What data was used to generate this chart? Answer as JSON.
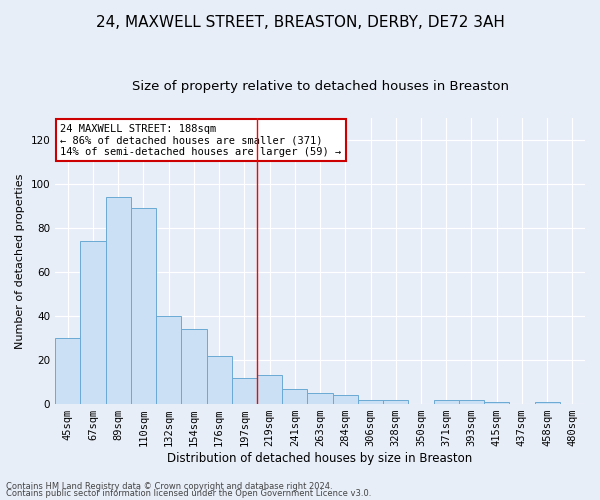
{
  "title": "24, MAXWELL STREET, BREASTON, DERBY, DE72 3AH",
  "subtitle": "Size of property relative to detached houses in Breaston",
  "xlabel": "Distribution of detached houses by size in Breaston",
  "ylabel": "Number of detached properties",
  "categories": [
    "45sqm",
    "67sqm",
    "89sqm",
    "110sqm",
    "132sqm",
    "154sqm",
    "176sqm",
    "197sqm",
    "219sqm",
    "241sqm",
    "263sqm",
    "284sqm",
    "306sqm",
    "328sqm",
    "350sqm",
    "371sqm",
    "393sqm",
    "415sqm",
    "437sqm",
    "458sqm",
    "480sqm"
  ],
  "values": [
    30,
    74,
    94,
    89,
    40,
    34,
    22,
    12,
    13,
    7,
    5,
    4,
    2,
    2,
    0,
    2,
    2,
    1,
    0,
    1,
    0
  ],
  "bar_color": "#cce0f5",
  "bar_edge_color": "#6aaad4",
  "red_line_x": 7.5,
  "annotation_text": "24 MAXWELL STREET: 188sqm\n← 86% of detached houses are smaller (371)\n14% of semi-detached houses are larger (59) →",
  "annotation_box_color": "#ffffff",
  "annotation_box_edge": "#cc0000",
  "footer_line1": "Contains HM Land Registry data © Crown copyright and database right 2024.",
  "footer_line2": "Contains public sector information licensed under the Open Government Licence v3.0.",
  "ylim": [
    0,
    130
  ],
  "yticks": [
    0,
    20,
    40,
    60,
    80,
    100,
    120
  ],
  "bg_color": "#e8eef8",
  "plot_bg_color": "#e8eef8",
  "grid_color": "#ffffff",
  "title_fontsize": 11,
  "subtitle_fontsize": 9.5,
  "xlabel_fontsize": 8.5,
  "ylabel_fontsize": 8,
  "tick_fontsize": 7.5,
  "annotation_fontsize": 7.5,
  "footer_fontsize": 6
}
